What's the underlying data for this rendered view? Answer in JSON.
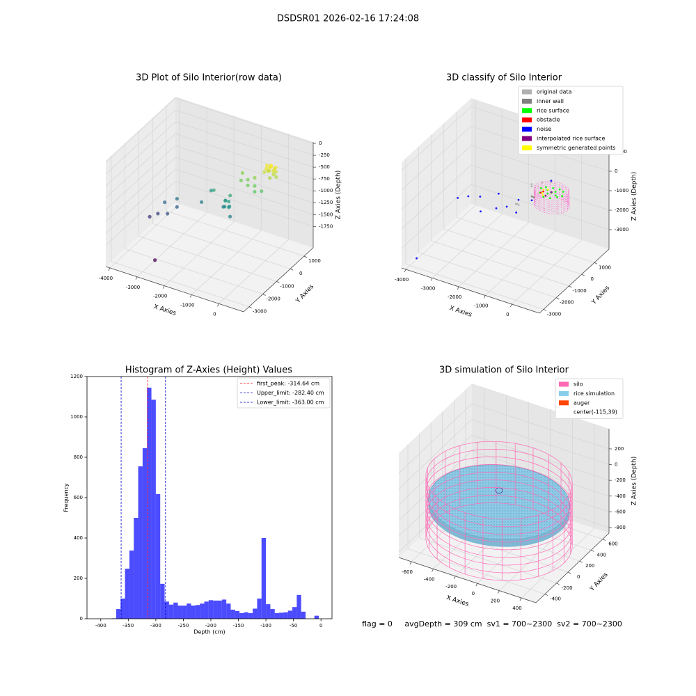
{
  "title": "DSDSR01 2026-02-16 17:24:08",
  "footer": "flag = 0     avgDepth = 309 cm  sv1 = 700~2300  sv2 = 700~2300",
  "chart_data": [
    {
      "type": "scatter3d",
      "title": "3D Plot of Silo Interior(row data)",
      "xlabel": "X Axies",
      "ylabel": "Y Axies",
      "zlabel": "Z Axies (Depth)",
      "xlim": [
        -4150,
        910
      ],
      "ylim": [
        -3400,
        1660
      ],
      "zlim": [
        -2200,
        30
      ],
      "xticks": [
        -4000,
        -3000,
        -2000,
        -1000,
        0
      ],
      "yticks": [
        -3000,
        -2000,
        -1000,
        0,
        1000
      ],
      "zticks": [
        -1750,
        -1500,
        -1250,
        -1000,
        -750,
        -500,
        -250,
        0
      ],
      "colormap": "viridis",
      "points": {
        "x": [
          -100,
          0,
          100,
          150,
          50,
          -50,
          -150,
          -200,
          0,
          80,
          200,
          -80,
          120,
          -120,
          30,
          -500,
          -700,
          -400,
          -300,
          -600,
          -900,
          -200,
          -1000,
          -1200,
          -1300,
          -1100,
          -1200,
          -1400,
          -1000,
          -1250,
          -1150,
          -1350,
          -1800,
          -2000,
          -2200,
          -3000,
          -3200,
          -3400,
          -3600,
          -3100,
          -3800,
          -2800
        ],
        "y": [
          250,
          300,
          350,
          450,
          550,
          500,
          400,
          300,
          400,
          420,
          380,
          350,
          500,
          480,
          250,
          200,
          100,
          0,
          -200,
          -100,
          0,
          100,
          300,
          -300,
          -400,
          -500,
          -200,
          -300,
          -600,
          -450,
          -350,
          -250,
          -200,
          0,
          -300,
          -500,
          -800,
          -600,
          -700,
          -300,
          -900,
          -2500
        ],
        "z": [
          -350,
          -320,
          -380,
          -420,
          -400,
          -360,
          -330,
          -450,
          -300,
          -480,
          -500,
          -420,
          -350,
          -460,
          -520,
          -600,
          -650,
          -700,
          -750,
          -700,
          -680,
          -800,
          -620,
          -1100,
          -1200,
          -1150,
          -1000,
          -1250,
          -1300,
          -1050,
          -1180,
          -1120,
          -1000,
          -1100,
          -1300,
          -1500,
          -1600,
          -1450,
          -1700,
          -1400,
          -1750,
          -2050
        ]
      }
    },
    {
      "type": "scatter3d",
      "title": "3D classify of Silo Interior",
      "xlabel": "X Axies",
      "ylabel": "Y Axies",
      "zlabel": "Z Axies (Depth)",
      "xlim": [
        -4160,
        1040
      ],
      "ylim": [
        -3330,
        2150
      ],
      "zlim": [
        -4000,
        1430
      ],
      "xticks": [
        -4000,
        -3000,
        -2000,
        -1000,
        0
      ],
      "yticks": [
        -3000,
        -2000,
        -1000,
        0,
        1000
      ],
      "zticks": [
        -3000,
        -2000,
        -1000,
        0,
        1000
      ],
      "wall": {
        "center": [
          -115,
          39
        ],
        "radius": 600,
        "z": [
          -1000,
          -200
        ],
        "color": "#ff66cc"
      },
      "series": [
        {
          "name": "original data",
          "color": "#b0b0b0",
          "x": [
            -1200,
            -1300,
            -1100,
            -900,
            -600,
            -300,
            -800
          ],
          "y": [
            -400,
            -300,
            -500,
            100,
            300,
            400,
            -100
          ],
          "z": [
            -1150,
            -1250,
            -1100,
            -300,
            -200,
            -100,
            -250
          ]
        },
        {
          "name": "inner wall",
          "color": "#808080",
          "x": [
            -700,
            -650
          ],
          "y": [
            -300,
            -250
          ],
          "z": [
            -600,
            -650
          ]
        },
        {
          "name": "rice surface",
          "color": "#00ff00",
          "x": [
            285,
            209,
            9,
            -239,
            -439,
            -515,
            -439,
            -239,
            9,
            209,
            -115,
            -15,
            -215,
            85,
            -315
          ],
          "y": [
            39,
            274,
            419,
            419,
            274,
            39,
            -196,
            -341,
            -341,
            -196,
            39,
            139,
            -61,
            -61,
            139
          ],
          "z": [
            -350,
            -300,
            -350,
            -400,
            -350,
            -300,
            -350,
            -400,
            -350,
            -300,
            -350,
            -320,
            -380,
            -340,
            -360
          ]
        },
        {
          "name": "obstacle",
          "color": "#ff0000",
          "x": [
            -500,
            -480
          ],
          "y": [
            0,
            150
          ],
          "z": [
            -500,
            -520
          ]
        },
        {
          "name": "noise",
          "color": "#0000ff",
          "x": [
            -3000,
            -3300,
            -2600,
            -2000,
            -1500,
            -1200,
            -1000,
            -3800,
            -700,
            -2200,
            -1800,
            -400
          ],
          "y": [
            -500,
            -700,
            -400,
            -200,
            -600,
            -300,
            -900,
            -2900,
            -300,
            -1200,
            -800,
            600
          ],
          "z": [
            -1500,
            -1600,
            -1400,
            -1100,
            -1300,
            -1000,
            -1200,
            -3600,
            -800,
            -1500,
            -1400,
            -200
          ]
        },
        {
          "name": "interpolated rice surface",
          "color": "#800080",
          "x": [
            -250,
            -200
          ],
          "y": [
            -150,
            200
          ],
          "z": [
            -450,
            -460
          ]
        },
        {
          "name": "symmetric generated points",
          "color": "#ffff00",
          "x": [
            -400,
            -450,
            -350,
            -300
          ],
          "y": [
            -100,
            100,
            250,
            -250
          ],
          "z": [
            -400,
            -380,
            -420,
            -390
          ]
        }
      ]
    },
    {
      "type": "histogram",
      "title": "Histogram of Z-Axies (Height) Values",
      "xlabel": "Depth (cm)",
      "ylabel": "Frequency",
      "color": "#0000ff",
      "xlim": [
        -425,
        20
      ],
      "ylim": [
        0,
        1200
      ],
      "xticks": [
        -400,
        -350,
        -300,
        -250,
        -200,
        -150,
        -100,
        -50,
        0
      ],
      "yticks": [
        0,
        200,
        400,
        600,
        800,
        1000,
        1200
      ],
      "bins": [
        -380,
        -372,
        -364,
        -356,
        -348,
        -340,
        -332,
        -324,
        -316,
        -308,
        -300,
        -292,
        -284,
        -276,
        -268,
        -260,
        -252,
        -244,
        -236,
        -228,
        -220,
        -212,
        -204,
        -196,
        -188,
        -180,
        -172,
        -164,
        -156,
        -148,
        -140,
        -132,
        -124,
        -116,
        -108,
        -100,
        -92,
        -84,
        -76,
        -68,
        -60,
        -52,
        -44,
        -36,
        -28,
        -20,
        -12,
        -4
      ],
      "counts": [
        2,
        48,
        100,
        248,
        338,
        500,
        755,
        845,
        1145,
        1085,
        618,
        173,
        85,
        70,
        80,
        65,
        65,
        75,
        65,
        68,
        75,
        85,
        92,
        90,
        90,
        95,
        75,
        45,
        38,
        28,
        32,
        28,
        50,
        100,
        400,
        72,
        48,
        28,
        30,
        32,
        40,
        58,
        118,
        35,
        0,
        0,
        15
      ],
      "vlines": [
        {
          "label": "first_peak: -314.64 cm",
          "value": -314.64,
          "color": "#ff0000"
        },
        {
          "label": "Upper_limit: -282.40 cm",
          "value": -282.4,
          "color": "#0000cc"
        },
        {
          "label": "Lower_limit: -363.00 cm",
          "value": -363.0,
          "color": "#0000cc"
        }
      ]
    },
    {
      "type": "simulation3d",
      "title": "3D simulation of Silo Interior",
      "xlabel": "X Axies",
      "ylabel": "Y Axies",
      "zlabel": "Z Axies (Depth)",
      "xlim": [
        -714,
        533
      ],
      "ylim": [
        -557,
        709
      ],
      "zlim": [
        -871,
        456
      ],
      "xticks": [
        -600,
        -400,
        -200,
        0,
        200,
        400
      ],
      "yticks": [
        -400,
        -200,
        0,
        200,
        400,
        600
      ],
      "zticks": [
        -800,
        -600,
        -400,
        -200,
        0,
        200
      ],
      "silo": {
        "center": [
          -115,
          39
        ],
        "radius": 590,
        "z": [
          -810,
          -30
        ]
      },
      "rice": {
        "center": [
          -115,
          39
        ],
        "radius": 570,
        "z": -309
      },
      "legend": [
        {
          "name": "silo",
          "color": "#ff69b4"
        },
        {
          "name": "rice simulation",
          "color": "#87ceeb"
        },
        {
          "name": "auger",
          "color": "#ff4500"
        },
        {
          "name": "center(-115,39)"
        }
      ]
    }
  ]
}
